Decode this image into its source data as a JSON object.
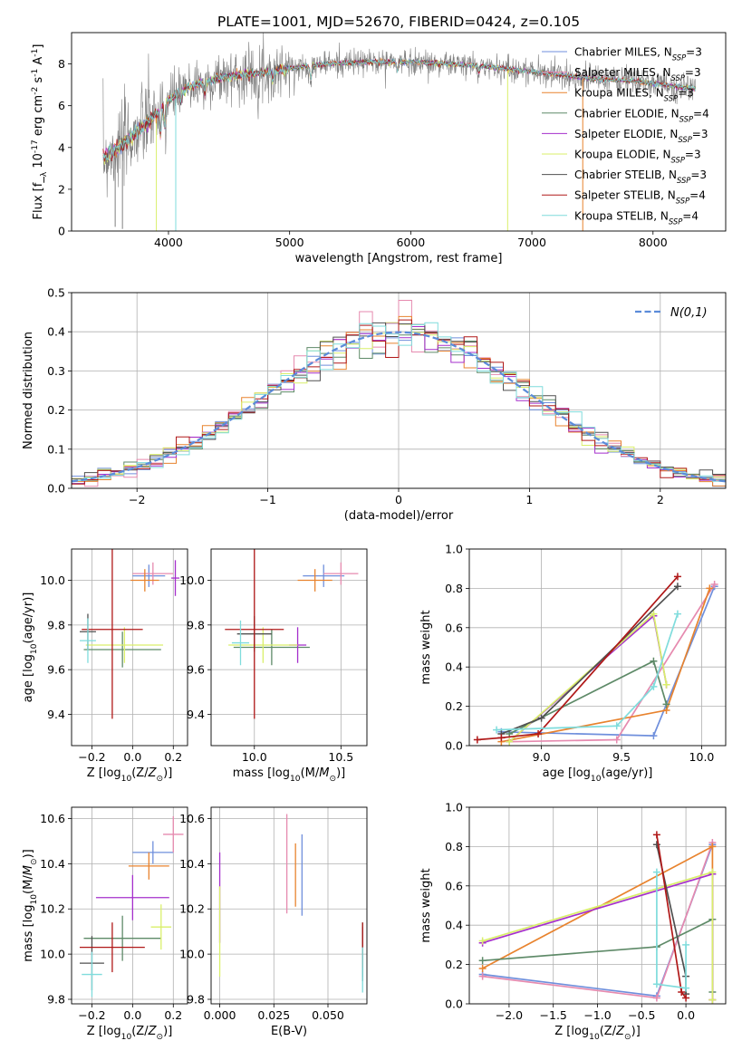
{
  "title": "PLATE=1001, MJD=52670, FIBERID=0424, z=0.105",
  "models": [
    {
      "name": "Chabrier MILES",
      "nssp": "3",
      "color": "#6f8fdc"
    },
    {
      "name": "Salpeter MILES",
      "nssp": "3",
      "color": "#e68aaf"
    },
    {
      "name": "Kroupa MILES",
      "nssp": "3",
      "color": "#e8832e"
    },
    {
      "name": "Chabrier ELODIE",
      "nssp": "4",
      "color": "#5e8a68"
    },
    {
      "name": "Salpeter ELODIE",
      "nssp": "3",
      "color": "#a52fcc"
    },
    {
      "name": "Kroupa ELODIE",
      "nssp": "3",
      "color": "#d9ef6a"
    },
    {
      "name": "Chabrier STELIB",
      "nssp": "3",
      "color": "#505050"
    },
    {
      "name": "Salpeter STELIB",
      "nssp": "4",
      "color": "#b01818"
    },
    {
      "name": "Kroupa STELIB",
      "nssp": "4",
      "color": "#7fdcdc"
    }
  ],
  "chart_data": [
    {
      "id": "spectrum",
      "type": "line",
      "xlabel": "wavelength [Angstrom, rest frame]",
      "ylabel": "Flux [f_λ 10^-17 erg cm^-2 s^-1 A^-1]",
      "xlim": [
        3200,
        8600
      ],
      "ylim": [
        0,
        9.5
      ],
      "xticks": [
        4000,
        5000,
        6000,
        7000,
        8000
      ],
      "yticks": [
        0,
        2,
        4,
        6,
        8
      ],
      "grid": false,
      "legend": "right",
      "observed_color": "#808080",
      "continuum": {
        "x": [
          3460,
          3600,
          3750,
          3900,
          4000,
          4200,
          4500,
          4800,
          5000,
          5300,
          5700,
          6000,
          6300,
          6600,
          6900,
          7200,
          7500,
          7800,
          8100,
          8350
        ],
        "y": [
          3.5,
          4.0,
          4.8,
          5.6,
          6.3,
          7.0,
          7.4,
          7.6,
          7.8,
          8.0,
          8.1,
          8.1,
          8.0,
          7.9,
          7.7,
          7.5,
          7.3,
          7.2,
          7.0,
          6.8
        ]
      }
    },
    {
      "id": "residuals",
      "type": "histogram",
      "xlabel": "(data-model)/error",
      "ylabel": "Normed distribution",
      "xlim": [
        -2.5,
        2.5
      ],
      "ylim": [
        0,
        0.5
      ],
      "xticks": [
        -2,
        -1,
        0,
        1,
        2
      ],
      "yticks": [
        0.0,
        0.1,
        0.2,
        0.3,
        0.4,
        0.5
      ],
      "grid": true,
      "legend": "top-right",
      "bin_width": 0.1,
      "normal_label": "N(0,1)",
      "normal_color": "#5b8bd9"
    },
    {
      "id": "z-age",
      "type": "errorbar",
      "xlabel": "Z [log10(Z/Z⊙)]",
      "ylabel": "age [log10(age/yr)]",
      "xlim": [
        -0.3,
        0.27
      ],
      "ylim": [
        9.26,
        10.14
      ],
      "xticks": [
        -0.2,
        0.0,
        0.2
      ],
      "yticks": [
        9.4,
        9.6,
        9.8,
        10.0
      ],
      "grid": true,
      "points": [
        {
          "model": 0,
          "x": 0.08,
          "y": 10.02,
          "xerr": 0.08,
          "yerr": 0.05
        },
        {
          "model": 1,
          "x": 0.1,
          "y": 10.03,
          "xerr": 0.1,
          "yerr": 0.05
        },
        {
          "model": 2,
          "x": 0.06,
          "y": 10.0,
          "xerr": 0.07,
          "yerr": 0.05
        },
        {
          "model": 3,
          "x": -0.05,
          "y": 9.69,
          "xerr": 0.19,
          "yerr": 0.08
        },
        {
          "model": 4,
          "x": 0.21,
          "y": 10.01,
          "xerr": 0.02,
          "yerr": 0.08
        },
        {
          "model": 5,
          "x": -0.04,
          "y": 9.71,
          "xerr": 0.19,
          "yerr": 0.08
        },
        {
          "model": 6,
          "x": -0.22,
          "y": 9.77,
          "xerr": 0.04,
          "yerr": 0.08
        },
        {
          "model": 7,
          "x": -0.1,
          "y": 9.78,
          "xerr": 0.15,
          "yerr": 0.4
        },
        {
          "model": 8,
          "x": -0.22,
          "y": 9.73,
          "xerr": 0.04,
          "yerr": 0.1
        }
      ]
    },
    {
      "id": "mass-age",
      "type": "errorbar",
      "xlabel": "mass [log10(M/M⊙)]",
      "ylabel": "",
      "xlim": [
        9.75,
        10.65
      ],
      "ylim": [
        9.26,
        10.14
      ],
      "xticks": [
        10.0,
        10.5
      ],
      "yticks": [
        9.4,
        9.6,
        9.8,
        10.0
      ],
      "grid": true,
      "points": [
        {
          "model": 0,
          "x": 10.4,
          "y": 10.02,
          "xerr": 0.12,
          "yerr": 0.05
        },
        {
          "model": 1,
          "x": 10.5,
          "y": 10.03,
          "xerr": 0.1,
          "yerr": 0.05
        },
        {
          "model": 2,
          "x": 10.35,
          "y": 10.0,
          "xerr": 0.1,
          "yerr": 0.05
        },
        {
          "model": 3,
          "x": 10.1,
          "y": 9.7,
          "xerr": 0.22,
          "yerr": 0.08
        },
        {
          "model": 4,
          "x": 10.25,
          "y": 9.71,
          "xerr": 0.05,
          "yerr": 0.08
        },
        {
          "model": 5,
          "x": 10.05,
          "y": 9.71,
          "xerr": 0.2,
          "yerr": 0.08
        },
        {
          "model": 6,
          "x": 10.0,
          "y": 9.76,
          "xerr": 0.1,
          "yerr": 0.08
        },
        {
          "model": 7,
          "x": 10.0,
          "y": 9.78,
          "xerr": 0.17,
          "yerr": 0.4
        },
        {
          "model": 8,
          "x": 9.92,
          "y": 9.72,
          "xerr": 0.05,
          "yerr": 0.1
        }
      ]
    },
    {
      "id": "age-weight",
      "type": "line",
      "xlabel": "age [log10(age/yr)]",
      "ylabel": "mass weight",
      "xlim": [
        8.55,
        10.15
      ],
      "ylim": [
        0,
        1
      ],
      "xticks": [
        9.0,
        9.5,
        10.0
      ],
      "yticks": [
        0.0,
        0.2,
        0.4,
        0.6,
        0.8,
        1.0
      ],
      "grid": true,
      "series": [
        {
          "model": 0,
          "x": [
            8.75,
            9.7,
            10.08
          ],
          "y": [
            0.07,
            0.05,
            0.81
          ]
        },
        {
          "model": 1,
          "x": [
            8.8,
            9.47,
            10.08
          ],
          "y": [
            0.02,
            0.03,
            0.82
          ]
        },
        {
          "model": 2,
          "x": [
            8.75,
            9.78,
            10.05
          ],
          "y": [
            0.02,
            0.18,
            0.8
          ]
        },
        {
          "model": 3,
          "x": [
            8.8,
            9.7,
            9.78
          ],
          "y": [
            0.06,
            0.43,
            0.21
          ]
        },
        {
          "model": 4,
          "x": [
            8.8,
            9.7,
            9.78
          ],
          "y": [
            0.02,
            0.66,
            0.31
          ]
        },
        {
          "model": 5,
          "x": [
            8.8,
            9.7,
            9.78
          ],
          "y": [
            0.02,
            0.67,
            0.31
          ]
        },
        {
          "model": 6,
          "x": [
            8.75,
            9.0,
            9.85
          ],
          "y": [
            0.06,
            0.14,
            0.81
          ]
        },
        {
          "model": 7,
          "x": [
            8.6,
            8.75,
            8.98,
            9.85
          ],
          "y": [
            0.03,
            0.04,
            0.06,
            0.86
          ]
        },
        {
          "model": 8,
          "x": [
            8.72,
            9.47,
            9.7,
            9.85
          ],
          "y": [
            0.08,
            0.1,
            0.3,
            0.67
          ]
        }
      ]
    },
    {
      "id": "z-mass",
      "type": "errorbar",
      "xlabel": "Z [log10(Z/Z⊙)]",
      "ylabel": "mass [log10(M/M⊙)]",
      "xlim": [
        -0.3,
        0.27
      ],
      "ylim": [
        9.78,
        10.65
      ],
      "xticks": [
        -0.2,
        0.0,
        0.2
      ],
      "yticks": [
        9.8,
        10.0,
        10.2,
        10.4,
        10.6
      ],
      "grid": true,
      "points": [
        {
          "model": 0,
          "x": 0.1,
          "y": 10.45,
          "xerr": 0.1,
          "yerr": 0.05
        },
        {
          "model": 1,
          "x": 0.2,
          "y": 10.53,
          "xerr": 0.05,
          "yerr": 0.08
        },
        {
          "model": 2,
          "x": 0.08,
          "y": 10.39,
          "xerr": 0.1,
          "yerr": 0.06
        },
        {
          "model": 3,
          "x": -0.05,
          "y": 10.07,
          "xerr": 0.19,
          "yerr": 0.1
        },
        {
          "model": 4,
          "x": 0.0,
          "y": 10.25,
          "xerr": 0.18,
          "yerr": 0.1
        },
        {
          "model": 5,
          "x": 0.14,
          "y": 10.12,
          "xerr": 0.05,
          "yerr": 0.1
        },
        {
          "model": 6,
          "x": -0.2,
          "y": 9.96,
          "xerr": 0.06,
          "yerr": 0.12
        },
        {
          "model": 7,
          "x": -0.1,
          "y": 10.03,
          "xerr": 0.16,
          "yerr": 0.11
        },
        {
          "model": 8,
          "x": -0.2,
          "y": 9.91,
          "xerr": 0.05,
          "yerr": 0.1
        }
      ]
    },
    {
      "id": "ebv-mass",
      "type": "errorbar",
      "xlabel": "E(B-V)",
      "ylabel": "",
      "xlim": [
        -0.004,
        0.068
      ],
      "ylim": [
        9.78,
        10.65
      ],
      "xticks": [
        0.0,
        0.025,
        0.05
      ],
      "yticklabels": [
        "0.000",
        "0.025",
        "0.050"
      ],
      "yticks": [
        9.8,
        10.0,
        10.2,
        10.4,
        10.6
      ],
      "grid": true,
      "points": [
        {
          "model": 0,
          "x": 0.038,
          "y": 10.35,
          "xerr": 0,
          "yerr": 0.18
        },
        {
          "model": 1,
          "x": 0.031,
          "y": 10.4,
          "xerr": 0,
          "yerr": 0.22
        },
        {
          "model": 2,
          "x": 0.035,
          "y": 10.35,
          "xerr": 0,
          "yerr": 0.14
        },
        {
          "model": 3,
          "x": 0.066,
          "y": 10.02,
          "xerr": 0,
          "yerr": 0.12
        },
        {
          "model": 4,
          "x": 0.0,
          "y": 10.25,
          "xerr": 0,
          "yerr": 0.2
        },
        {
          "model": 5,
          "x": 0.0,
          "y": 10.1,
          "xerr": 0,
          "yerr": 0.2
        },
        {
          "model": 6,
          "x": 0.066,
          "y": 10.0,
          "xerr": 0,
          "yerr": 0.12
        },
        {
          "model": 7,
          "x": 0.066,
          "y": 10.04,
          "xerr": 0,
          "yerr": 0.1
        },
        {
          "model": 8,
          "x": 0.066,
          "y": 9.93,
          "xerr": 0,
          "yerr": 0.1
        }
      ]
    },
    {
      "id": "z-weight",
      "type": "line",
      "xlabel": "Z [log10(Z/Z⊙)]",
      "ylabel": "mass weight",
      "xlim": [
        -2.45,
        0.45
      ],
      "ylim": [
        0,
        1
      ],
      "xticks": [
        -2.0,
        -1.5,
        -1.0,
        -0.5,
        0.0
      ],
      "yticks": [
        0.0,
        0.2,
        0.4,
        0.6,
        0.8,
        1.0
      ],
      "grid": true,
      "series": [
        {
          "model": 0,
          "x": [
            -2.3,
            -0.33,
            0.3
          ],
          "y": [
            0.15,
            0.04,
            0.81
          ]
        },
        {
          "model": 1,
          "x": [
            -2.3,
            -0.33,
            0.3
          ],
          "y": [
            0.14,
            0.03,
            0.82
          ]
        },
        {
          "model": 2,
          "x": [
            -2.3,
            0.3,
            0.3
          ],
          "y": [
            0.18,
            0.8,
            0.02
          ]
        },
        {
          "model": 3,
          "x": [
            -2.3,
            -0.33,
            0.3,
            0.3
          ],
          "y": [
            0.22,
            0.29,
            0.43,
            0.06
          ]
        },
        {
          "model": 4,
          "x": [
            -2.3,
            0.3,
            0.3
          ],
          "y": [
            0.31,
            0.66,
            0.02
          ]
        },
        {
          "model": 5,
          "x": [
            -2.3,
            0.3,
            0.3
          ],
          "y": [
            0.32,
            0.67,
            0.02
          ]
        },
        {
          "model": 6,
          "x": [
            -0.33,
            0.0,
            0.0
          ],
          "y": [
            0.81,
            0.14,
            0.05
          ]
        },
        {
          "model": 7,
          "x": [
            -0.33,
            -0.05,
            0.0
          ],
          "y": [
            0.86,
            0.06,
            0.03
          ]
        },
        {
          "model": 8,
          "x": [
            -0.33,
            -0.33,
            0.0,
            0.0
          ],
          "y": [
            0.67,
            0.1,
            0.08,
            0.3
          ]
        }
      ]
    }
  ]
}
